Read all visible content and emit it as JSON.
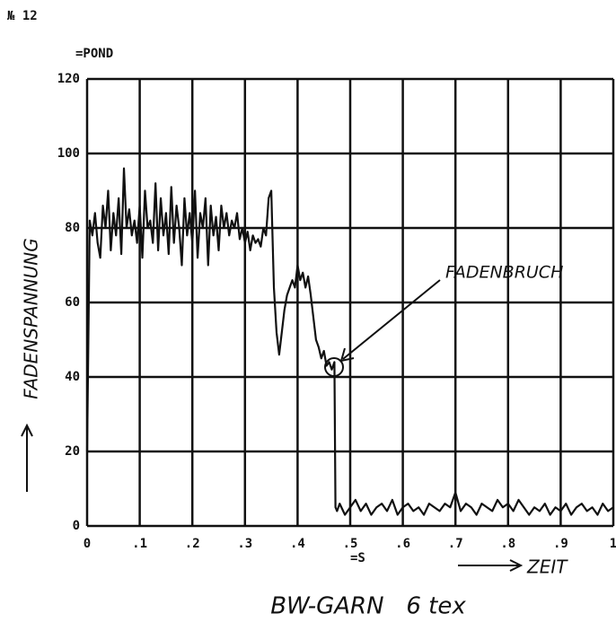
{
  "chart_data": {
    "type": "line",
    "title": "BW-GARN   6 tex",
    "page_label": "№ 12",
    "y_unit": "=POND",
    "x_unit": "=S",
    "y_label": "FADENSPANNUNG",
    "x_label": "ZEIT",
    "annotation": "FADENBRUCH",
    "color": "#111111",
    "grid": true,
    "xlim": [
      0,
      1
    ],
    "ylim": [
      0,
      120
    ],
    "xticks": [
      0,
      {
        "value": 0.1,
        "label": ".1"
      },
      {
        "value": 0.2,
        "label": ".2"
      },
      {
        "value": 0.3,
        "label": ".3"
      },
      {
        "value": 0.4,
        "label": ".4"
      },
      {
        "value": 0.5,
        "label": ".5"
      },
      {
        "value": 0.6,
        "label": ".6"
      },
      {
        "value": 0.7,
        "label": ".7"
      },
      {
        "value": 0.8,
        "label": ".8"
      },
      {
        "value": 0.9,
        "label": ".9"
      },
      1
    ],
    "yticks": [
      0,
      20,
      40,
      60,
      80,
      100,
      120
    ],
    "x": [
      0,
      0.005,
      0.01,
      0.015,
      0.02,
      0.025,
      0.03,
      0.035,
      0.04,
      0.045,
      0.05,
      0.055,
      0.06,
      0.065,
      0.07,
      0.075,
      0.08,
      0.085,
      0.09,
      0.095,
      0.1,
      0.105,
      0.11,
      0.115,
      0.12,
      0.125,
      0.13,
      0.135,
      0.14,
      0.145,
      0.15,
      0.155,
      0.16,
      0.165,
      0.17,
      0.175,
      0.18,
      0.185,
      0.19,
      0.195,
      0.2,
      0.205,
      0.21,
      0.215,
      0.22,
      0.225,
      0.23,
      0.235,
      0.24,
      0.245,
      0.25,
      0.255,
      0.26,
      0.265,
      0.27,
      0.275,
      0.28,
      0.285,
      0.29,
      0.295,
      0.3,
      0.305,
      0.31,
      0.315,
      0.32,
      0.325,
      0.33,
      0.335,
      0.34,
      0.345,
      0.35,
      0.355,
      0.36,
      0.365,
      0.37,
      0.375,
      0.38,
      0.385,
      0.39,
      0.395,
      0.4,
      0.405,
      0.41,
      0.415,
      0.42,
      0.425,
      0.43,
      0.435,
      0.44,
      0.445,
      0.45,
      0.455,
      0.46,
      0.465,
      0.47,
      0.472,
      0.475,
      0.48,
      0.49,
      0.5,
      0.51,
      0.52,
      0.53,
      0.54,
      0.55,
      0.56,
      0.57,
      0.58,
      0.59,
      0.6,
      0.61,
      0.62,
      0.63,
      0.64,
      0.65,
      0.66,
      0.67,
      0.68,
      0.69,
      0.7,
      0.71,
      0.72,
      0.73,
      0.74,
      0.75,
      0.76,
      0.77,
      0.78,
      0.79,
      0.8,
      0.81,
      0.82,
      0.83,
      0.84,
      0.85,
      0.86,
      0.87,
      0.88,
      0.89,
      0.9,
      0.91,
      0.92,
      0.93,
      0.94,
      0.95,
      0.96,
      0.97,
      0.98,
      0.99,
      1
    ],
    "values": [
      20,
      82,
      78,
      84,
      76,
      72,
      86,
      80,
      90,
      74,
      84,
      78,
      88,
      73,
      96,
      80,
      85,
      78,
      82,
      76,
      86,
      72,
      90,
      80,
      82,
      76,
      92,
      74,
      88,
      78,
      84,
      73,
      91,
      76,
      86,
      80,
      70,
      88,
      78,
      84,
      76,
      90,
      72,
      84,
      80,
      88,
      70,
      86,
      78,
      83,
      74,
      86,
      80,
      84,
      78,
      82,
      80,
      84,
      77,
      80,
      76,
      79,
      74,
      78,
      76,
      77,
      75,
      80,
      78,
      88,
      90,
      64,
      52,
      46,
      52,
      58,
      62,
      64,
      66,
      64,
      70,
      66,
      68,
      64,
      67,
      62,
      56,
      50,
      48,
      45,
      47,
      43,
      44,
      42,
      44,
      5,
      4,
      6,
      3,
      5,
      7,
      4,
      6,
      3,
      5,
      6,
      4,
      7,
      3,
      5,
      6,
      4,
      5,
      3,
      6,
      5,
      4,
      6,
      5,
      9,
      4,
      6,
      5,
      3,
      6,
      5,
      4,
      7,
      5,
      6,
      4,
      7,
      5,
      3,
      5,
      4,
      6,
      3,
      5,
      4,
      6,
      3,
      5,
      6,
      4,
      5,
      3,
      6,
      4,
      5
    ]
  }
}
